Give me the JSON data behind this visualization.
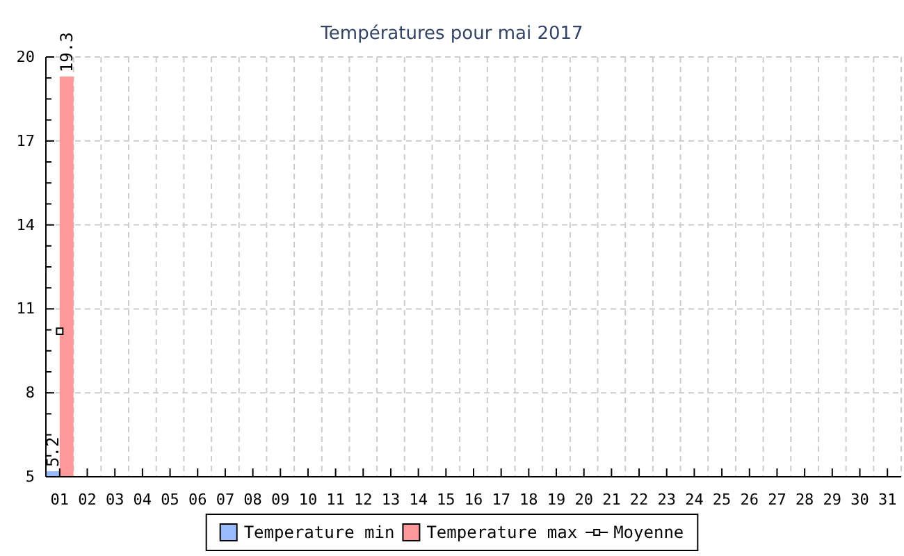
{
  "chart_data": {
    "type": "bar",
    "title": "Températures pour mai 2017",
    "categories": [
      "01",
      "02",
      "03",
      "04",
      "05",
      "06",
      "07",
      "08",
      "09",
      "10",
      "11",
      "12",
      "13",
      "14",
      "15",
      "16",
      "17",
      "18",
      "19",
      "20",
      "21",
      "22",
      "23",
      "24",
      "25",
      "26",
      "27",
      "28",
      "29",
      "30",
      "31"
    ],
    "series": [
      {
        "name": "Temperature min",
        "color": "#99bbff",
        "values": [
          5.2,
          null,
          null,
          null,
          null,
          null,
          null,
          null,
          null,
          null,
          null,
          null,
          null,
          null,
          null,
          null,
          null,
          null,
          null,
          null,
          null,
          null,
          null,
          null,
          null,
          null,
          null,
          null,
          null,
          null,
          null
        ],
        "value_labels": [
          "5.2",
          null,
          null,
          null,
          null,
          null,
          null,
          null,
          null,
          null,
          null,
          null,
          null,
          null,
          null,
          null,
          null,
          null,
          null,
          null,
          null,
          null,
          null,
          null,
          null,
          null,
          null,
          null,
          null,
          null,
          null
        ]
      },
      {
        "name": "Temperature max",
        "color": "#ff9999",
        "values": [
          19.3,
          null,
          null,
          null,
          null,
          null,
          null,
          null,
          null,
          null,
          null,
          null,
          null,
          null,
          null,
          null,
          null,
          null,
          null,
          null,
          null,
          null,
          null,
          null,
          null,
          null,
          null,
          null,
          null,
          null,
          null
        ],
        "value_labels": [
          "19.3",
          null,
          null,
          null,
          null,
          null,
          null,
          null,
          null,
          null,
          null,
          null,
          null,
          null,
          null,
          null,
          null,
          null,
          null,
          null,
          null,
          null,
          null,
          null,
          null,
          null,
          null,
          null,
          null,
          null,
          null
        ]
      },
      {
        "name": "Moyenne",
        "type": "line",
        "color": "#000000",
        "marker": "square",
        "values": [
          10.2,
          null,
          null,
          null,
          null,
          null,
          null,
          null,
          null,
          null,
          null,
          null,
          null,
          null,
          null,
          null,
          null,
          null,
          null,
          null,
          null,
          null,
          null,
          null,
          null,
          null,
          null,
          null,
          null,
          null,
          null
        ]
      }
    ],
    "ylim": [
      5,
      20
    ],
    "yticks": [
      5,
      {
        "value": 5.75,
        "label": null
      },
      {
        "value": 6.5,
        "label": null
      },
      {
        "value": 7.25,
        "label": null
      },
      8,
      {
        "value": 8.75,
        "label": null
      },
      {
        "value": 9.5,
        "label": null
      },
      {
        "value": 10.25,
        "label": null
      },
      11,
      {
        "value": 11.75,
        "label": null
      },
      {
        "value": 12.5,
        "label": null
      },
      {
        "value": 13.25,
        "label": null
      },
      14,
      {
        "value": 14.75,
        "label": null
      },
      {
        "value": 15.5,
        "label": null
      },
      {
        "value": 16.25,
        "label": null
      },
      17,
      {
        "value": 17.75,
        "label": null
      },
      {
        "value": 18.5,
        "label": null
      },
      {
        "value": 19.25,
        "label": null
      },
      20
    ],
    "grid": true,
    "legend": "bottom"
  }
}
